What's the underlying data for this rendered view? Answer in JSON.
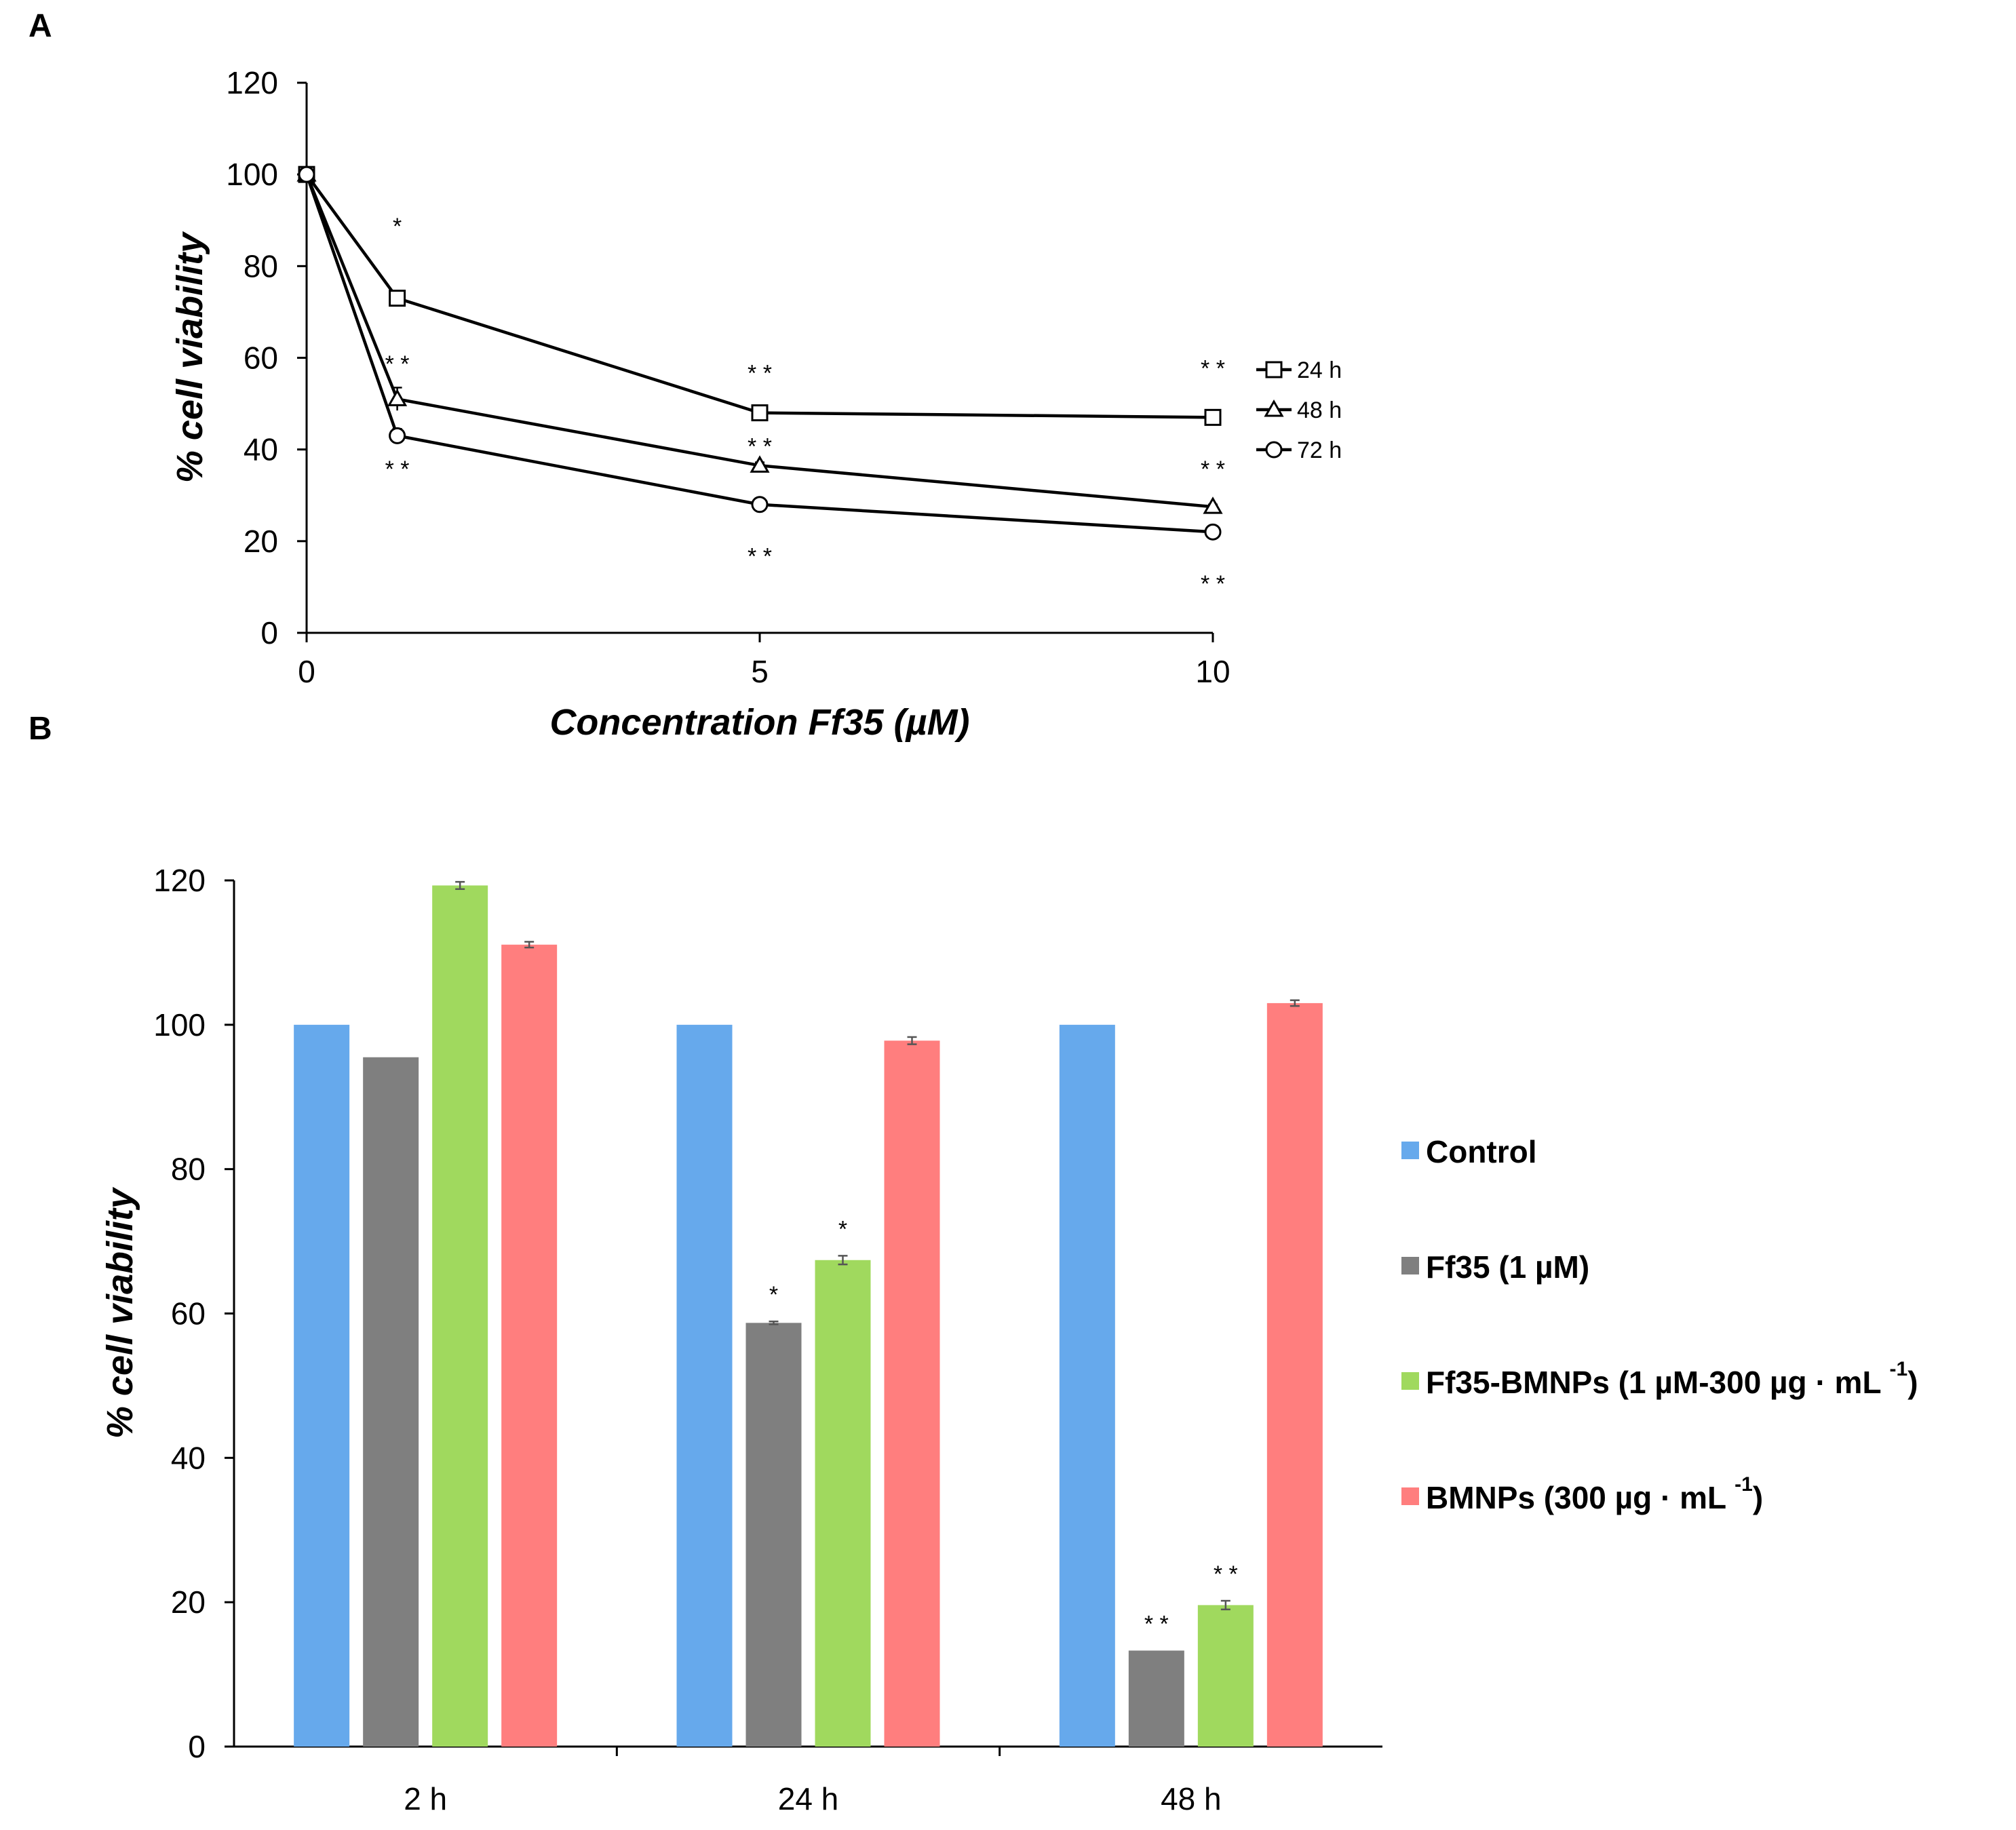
{
  "panels": {
    "a": {
      "letter": "A"
    },
    "b": {
      "letter": "B"
    }
  },
  "chart_data": [
    {
      "type": "line",
      "xlabel": "Concentration Ff35 (µM)",
      "ylabel": "% cell viability",
      "xlim": [
        0,
        10
      ],
      "ylim": [
        0,
        120
      ],
      "xticks": [
        0,
        5,
        10
      ],
      "yticks": [
        0,
        20,
        40,
        60,
        80,
        100,
        120
      ],
      "x": [
        0,
        1,
        5,
        10
      ],
      "legend_position": "right",
      "grid": false,
      "series": [
        {
          "name": "24 h",
          "marker": "square",
          "values": [
            100,
            73,
            48,
            47
          ],
          "errors": [
            0,
            1.5,
            0.7,
            0.5
          ],
          "annotations": [
            {
              "x": 1,
              "text": "*",
              "y": 87
            },
            {
              "x": 5,
              "text": "* *",
              "y": 55
            },
            {
              "x": 10,
              "text": "* *",
              "y": 56
            }
          ]
        },
        {
          "name": "48 h",
          "marker": "triangle",
          "values": [
            100,
            51,
            36.5,
            27.5
          ],
          "errors": [
            0,
            2.5,
            0.7,
            0.5
          ],
          "annotations": [
            {
              "x": 1,
              "text": "* *",
              "y": 57
            },
            {
              "x": 5,
              "text": "* *",
              "y": 39
            },
            {
              "x": 10,
              "text": "* *",
              "y": 34
            }
          ]
        },
        {
          "name": "72 h",
          "marker": "circle",
          "values": [
            100,
            43,
            28,
            22
          ],
          "errors": [
            0,
            1.5,
            0.5,
            0.5
          ],
          "annotations": [
            {
              "x": 1,
              "text": "* *",
              "y": 34
            },
            {
              "x": 5,
              "text": "* *",
              "y": 15
            },
            {
              "x": 10,
              "text": "* *",
              "y": 9
            }
          ]
        }
      ]
    },
    {
      "type": "bar",
      "xlabel": "",
      "ylabel": "% cell viability",
      "ylim": [
        0,
        120
      ],
      "yticks": [
        0,
        20,
        40,
        60,
        80,
        100,
        120
      ],
      "categories": [
        "2 h",
        "24 h",
        "48 h"
      ],
      "legend_position": "right",
      "grid": false,
      "series": [
        {
          "name": "Control",
          "label_sup": "",
          "label_close": "",
          "color": "#66a9ec",
          "values": [
            100,
            100,
            100
          ],
          "errors": [
            0,
            0,
            0
          ],
          "annotations": [
            "",
            "",
            ""
          ]
        },
        {
          "name": "Ff35 (1 µM)",
          "label_sup": "",
          "label_close": "",
          "color": "#7f7f7f",
          "values": [
            95.5,
            58.7,
            13.3
          ],
          "errors": [
            0,
            0.2,
            0
          ],
          "annotations": [
            "",
            "*",
            "* *"
          ]
        },
        {
          "name": "Ff35-BMNPs (1 µM-300 µg · mL",
          "label_sup": "-1",
          "label_close": ")",
          "color": "#a0d95e",
          "values": [
            119.3,
            67.4,
            19.6
          ],
          "errors": [
            0.5,
            0.6,
            0.6
          ],
          "annotations": [
            "",
            "*",
            "* *"
          ]
        },
        {
          "name": "BMNPs (300 µg · mL",
          "label_sup": "-1",
          "label_close": ")",
          "color": "#ff7e7e",
          "values": [
            111.1,
            97.8,
            103
          ],
          "errors": [
            0.4,
            0.5,
            0.4
          ],
          "annotations": [
            "",
            "",
            ""
          ]
        }
      ]
    }
  ]
}
